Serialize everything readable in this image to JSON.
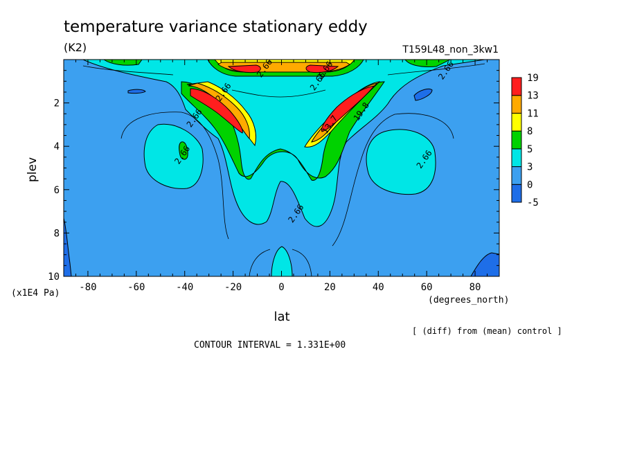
{
  "chart_data": {
    "type": "heatmap",
    "title": "temperature variance stationary eddy",
    "units": "(K2)",
    "run_label": "T159L48_non_3kw1",
    "xlabel": "lat",
    "x_unit": "(degrees_north)",
    "ylabel": "plev",
    "y_unit": "(x1E4 Pa)",
    "xlim": [
      -90,
      90
    ],
    "ylim": [
      10,
      0
    ],
    "x_ticks": [
      -80,
      -60,
      -40,
      -20,
      0,
      20,
      40,
      60,
      80
    ],
    "y_ticks": [
      2,
      4,
      6,
      8,
      10
    ],
    "colorbar": {
      "levels": [
        -5,
        0,
        3,
        5,
        8,
        11,
        13,
        19
      ],
      "labels": [
        "-5",
        "0",
        "3",
        "5",
        "8",
        "11",
        "13",
        "19"
      ],
      "colors": [
        "#1e6ee8",
        "#3ca0f0",
        "#00e6e6",
        "#00d200",
        "#ffff00",
        "#ffaa00",
        "#ff1e1e"
      ]
    },
    "contour_labels": [
      {
        "text": "2.66",
        "lat": -7,
        "plev": 0.4
      },
      {
        "text": "2.66",
        "lat": 18,
        "plev": 0.5
      },
      {
        "text": "2.66",
        "lat": 68,
        "plev": 0.5
      },
      {
        "text": "2.66",
        "lat": 15,
        "plev": 1.0
      },
      {
        "text": "2.66",
        "lat": -24,
        "plev": 1.5
      },
      {
        "text": "2.66",
        "lat": -36,
        "plev": 2.7
      },
      {
        "text": "2.66",
        "lat": -41,
        "plev": 4.4
      },
      {
        "text": "2.66",
        "lat": 59,
        "plev": 4.6
      },
      {
        "text": "2.66",
        "lat": 6,
        "plev": 7.1
      },
      {
        "text": "13.7",
        "lat": 20,
        "plev": 3.0
      },
      {
        "text": "19.8",
        "lat": 33,
        "plev": 2.4
      }
    ],
    "footnote": "[ (diff) from (mean) control ]",
    "contour_interval": "CONTOUR INTERVAL = 1.331E+00",
    "grid": false
  }
}
